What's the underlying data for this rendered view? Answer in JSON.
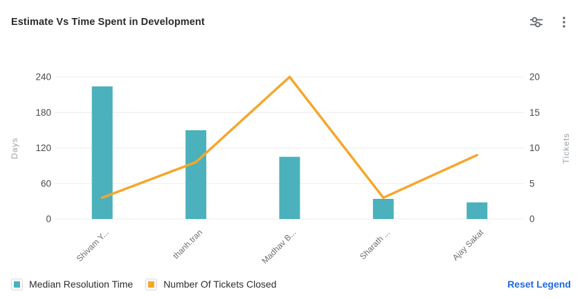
{
  "header": {
    "title": "Estimate Vs Time Spent in Development",
    "icons": [
      {
        "name": "chart-settings-sliders-icon"
      },
      {
        "name": "more-options-kebab-icon"
      }
    ]
  },
  "chart_data": {
    "type": "combo-bar-line",
    "categories": [
      "Shivam Y...",
      "thanh.tran",
      "Madhav B...",
      "Sharath ...",
      "Ajay Sakat"
    ],
    "series": [
      {
        "name": "Median Resolution Time",
        "type": "bar",
        "axis": "left",
        "color": "#4BB1BC",
        "values": [
          224,
          150,
          105,
          34,
          28
        ]
      },
      {
        "name": "Number Of Tickets Closed",
        "type": "line",
        "axis": "right",
        "color": "#F6A62B",
        "values": [
          3,
          8,
          20,
          3,
          9
        ]
      }
    ],
    "left_axis": {
      "label": "Days",
      "ticks": [
        0,
        60,
        120,
        180,
        240
      ],
      "min": 0,
      "max": 240
    },
    "right_axis": {
      "label": "Tickets",
      "ticks": [
        0,
        5,
        10,
        15,
        20
      ],
      "min": 0,
      "max": 20
    },
    "grid": true,
    "legend_position": "bottom",
    "x_label_rotation": 45
  },
  "legend": {
    "items": [
      {
        "label": "Median Resolution Time",
        "color": "#4BB1BC"
      },
      {
        "label": "Number Of Tickets Closed",
        "color": "#F6A62B"
      }
    ],
    "reset_label": "Reset Legend"
  },
  "colors": {
    "bar": "#4BB1BC",
    "line": "#F6A62B",
    "reset_link": "#1e6ae1",
    "gridline": "#ececec",
    "tick_text": "#4a4a4a",
    "axis_name_text": "#9aa3a9",
    "category_text": "#6e6e6e",
    "icon": "#60656b"
  }
}
